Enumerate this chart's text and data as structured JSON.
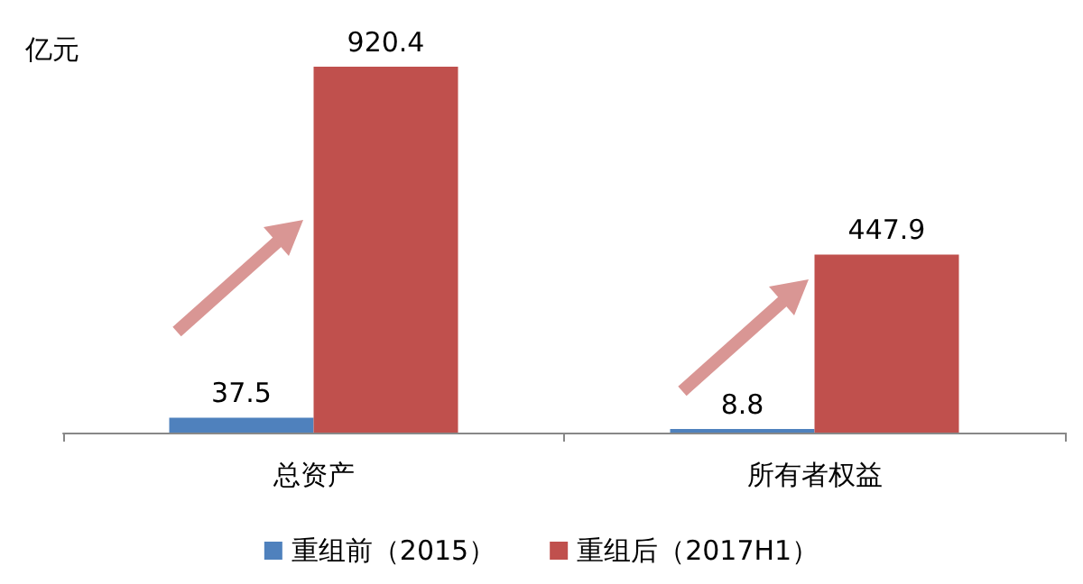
{
  "chart_data": {
    "type": "bar",
    "ylabel": "亿元",
    "categories": [
      "总资产",
      "所有者权益"
    ],
    "series": [
      {
        "name": "重组前（2015）",
        "color": "#4f81bd",
        "values": [
          37.5,
          8.8
        ]
      },
      {
        "name": "重组后（2017H1）",
        "color": "#c0504d",
        "values": [
          920.4,
          447.9
        ]
      }
    ],
    "data_labels": true,
    "legend": "bottom",
    "tick_labels": "x"
  }
}
